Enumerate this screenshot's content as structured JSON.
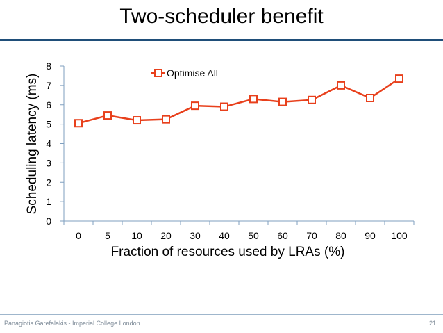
{
  "slide": {
    "title": "Two-scheduler benefit",
    "footer": "Panagiotis Garefalakis - Imperial College London",
    "page_number": "21"
  },
  "colors": {
    "series": "#e8401c",
    "axis": "#7f9fbf",
    "rule": "#1f4e79"
  },
  "chart_data": {
    "type": "line",
    "title": "",
    "xlabel": "Fraction of resources used by LRAs (%)",
    "ylabel": "Scheduling latency (ms)",
    "categories": [
      "0",
      "5",
      "10",
      "20",
      "30",
      "40",
      "50",
      "60",
      "70",
      "80",
      "90",
      "100"
    ],
    "yticks": [
      "0",
      "1",
      "2",
      "3",
      "4",
      "5",
      "6",
      "7",
      "8"
    ],
    "ylim": [
      0,
      8
    ],
    "grid": false,
    "legend_position": "top-center",
    "series": [
      {
        "name": "Optimise All",
        "marker": "square",
        "values": [
          5.05,
          5.45,
          5.2,
          5.25,
          5.95,
          5.9,
          6.3,
          6.15,
          6.25,
          7.0,
          6.35,
          7.35
        ]
      }
    ]
  }
}
